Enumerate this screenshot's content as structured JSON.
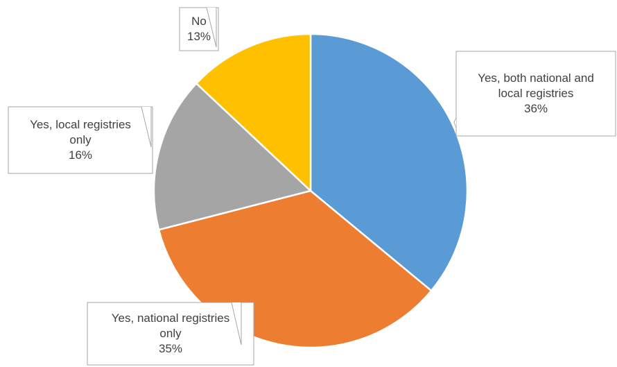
{
  "chart_data": {
    "type": "pie",
    "start_angle_deg": 0,
    "direction": "clockwise",
    "slices": [
      {
        "label_lines": [
          "Yes, both national and",
          "local registries"
        ],
        "value": 36,
        "value_label": "36%",
        "color": "#5b9bd5"
      },
      {
        "label_lines": [
          "Yes, national registries",
          "only"
        ],
        "value": 35,
        "value_label": "35%",
        "color": "#ed7d31"
      },
      {
        "label_lines": [
          "Yes, local registries",
          "only"
        ],
        "value": 16,
        "value_label": "16%",
        "color": "#a5a5a5"
      },
      {
        "label_lines": [
          "No"
        ],
        "value": 13,
        "value_label": "13%",
        "color": "#ffc000"
      }
    ]
  }
}
